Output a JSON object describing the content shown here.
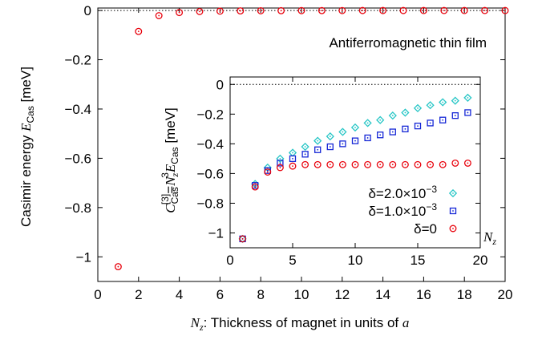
{
  "chart_data": [
    {
      "type": "scatter",
      "xlabel": {
        "var": "N",
        "sub": "z",
        "rest": ": Thickness of magnet in units of ",
        "unit": "a"
      },
      "ylabel": {
        "main": "Casimir energy ",
        "var": "E",
        "sub": "Cas",
        "unit": " [meV]"
      },
      "xlim": [
        0,
        20
      ],
      "ylim": [
        -1.1,
        0.01
      ],
      "xticks": [
        0,
        2,
        4,
        6,
        8,
        10,
        12,
        14,
        16,
        18,
        20
      ],
      "yticks": [
        0,
        -0.2,
        -0.4,
        -0.6,
        -0.8,
        -1
      ],
      "ytick_labels": [
        "0",
        "−0.2",
        "−0.4",
        "−0.6",
        "−0.8",
        "−1"
      ],
      "annotation": "Antiferromagnetic thin film",
      "reference_line": {
        "y": 0,
        "style": "dotted"
      },
      "series": [
        {
          "color": "#e8000b",
          "marker": "circle",
          "x": [
            1,
            2,
            3,
            4,
            5,
            6,
            7,
            8,
            9,
            10,
            11,
            12,
            13,
            14,
            15,
            16,
            17,
            18,
            19,
            20
          ],
          "y": [
            -1.04,
            -0.085,
            -0.021,
            -0.0083,
            -0.0043,
            -0.0025,
            -0.0016,
            -0.0011,
            -0.0008,
            -0.0006,
            -0.0004,
            -0.0003,
            -0.0002,
            -0.0002,
            -0.0002,
            -0.0001,
            -0.0001,
            -0.0001,
            -0.0001,
            -0.0001
          ]
        }
      ]
    },
    {
      "type": "scatter",
      "inset": true,
      "xlabel_corner": {
        "var": "N",
        "sub": "z"
      },
      "ylabel": {
        "c": "C",
        "csub": "Cas",
        "csup": "[3]",
        "eq": "=",
        "n": "N",
        "nsub": "z",
        "nsup": "3",
        "e": "E",
        "esub": "Cas",
        "unit": " [meV]"
      },
      "xlim": [
        0,
        20
      ],
      "ylim": [
        -1.1,
        0.05
      ],
      "xticks": [
        0,
        5,
        10,
        15,
        20
      ],
      "yticks": [
        0,
        -0.2,
        -0.4,
        -0.6,
        -0.8,
        -1
      ],
      "ytick_labels": [
        "0",
        "−0.2",
        "−0.4",
        "−0.6",
        "−0.8",
        "−1"
      ],
      "reference_line": {
        "y": 0,
        "style": "dotted"
      },
      "series": [
        {
          "name": "δ=2.0×10",
          "name_exp": "−3",
          "color": "#27c6c6",
          "marker": "diamond",
          "x": [
            1,
            2,
            3,
            4,
            5,
            6,
            7,
            8,
            9,
            10,
            11,
            12,
            13,
            14,
            15,
            16,
            17,
            18,
            19
          ],
          "y": [
            -1.04,
            -0.67,
            -0.56,
            -0.5,
            -0.46,
            -0.42,
            -0.38,
            -0.35,
            -0.32,
            -0.29,
            -0.26,
            -0.24,
            -0.21,
            -0.19,
            -0.16,
            -0.14,
            -0.12,
            -0.11,
            -0.09
          ]
        },
        {
          "name": "δ=1.0×10",
          "name_exp": "−3",
          "color": "#1426d6",
          "marker": "square",
          "x": [
            1,
            2,
            3,
            4,
            5,
            6,
            7,
            8,
            9,
            10,
            11,
            12,
            13,
            14,
            15,
            16,
            17,
            18,
            19
          ],
          "y": [
            -1.04,
            -0.68,
            -0.58,
            -0.53,
            -0.5,
            -0.47,
            -0.44,
            -0.42,
            -0.4,
            -0.38,
            -0.36,
            -0.34,
            -0.32,
            -0.3,
            -0.28,
            -0.26,
            -0.24,
            -0.21,
            -0.19
          ]
        },
        {
          "name": "δ=0",
          "color": "#e8000b",
          "marker": "circle",
          "x": [
            1,
            2,
            3,
            4,
            5,
            6,
            7,
            8,
            9,
            10,
            11,
            12,
            13,
            14,
            15,
            16,
            17,
            18,
            19
          ],
          "y": [
            -1.04,
            -0.69,
            -0.59,
            -0.56,
            -0.55,
            -0.54,
            -0.54,
            -0.54,
            -0.54,
            -0.54,
            -0.54,
            -0.54,
            -0.54,
            -0.54,
            -0.54,
            -0.54,
            -0.54,
            -0.53,
            -0.53
          ]
        }
      ]
    }
  ]
}
